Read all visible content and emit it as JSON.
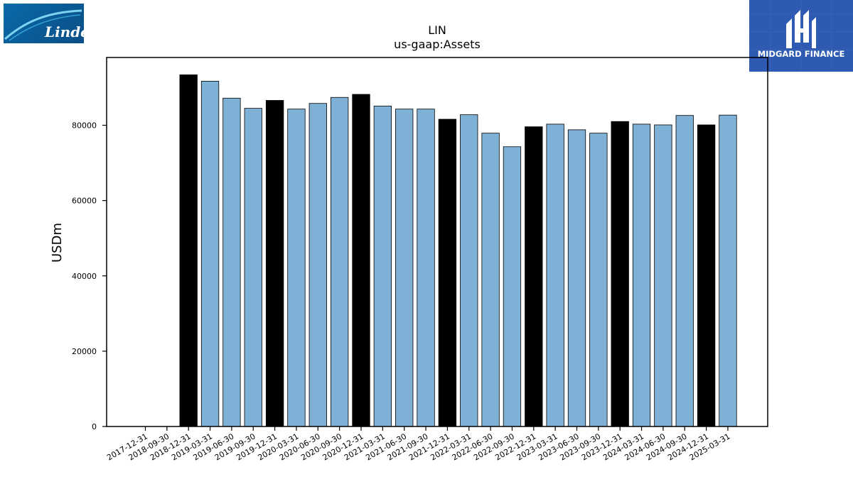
{
  "logos": {
    "left_text": "Linde",
    "right_text": "MIDGARD FINANCE"
  },
  "chart_data": {
    "type": "bar",
    "title": "LIN",
    "subtitle": "us-gaap:Assets",
    "xlabel": "",
    "ylabel": "USDm",
    "ylim": [
      0,
      98000
    ],
    "yticks": [
      0,
      20000,
      40000,
      60000,
      80000
    ],
    "grid": false,
    "categories": [
      "2017-12-31",
      "2018-09-30",
      "2018-12-31",
      "2019-03-31",
      "2019-06-30",
      "2019-09-30",
      "2019-12-31",
      "2020-03-31",
      "2020-06-30",
      "2020-09-30",
      "2020-12-31",
      "2021-03-31",
      "2021-06-30",
      "2021-09-30",
      "2021-12-31",
      "2022-03-31",
      "2022-06-30",
      "2022-09-30",
      "2022-12-31",
      "2023-03-31",
      "2023-06-30",
      "2023-09-30",
      "2023-12-31",
      "2024-03-31",
      "2024-06-30",
      "2024-09-30",
      "2024-12-31",
      "2025-03-31"
    ],
    "values": [
      null,
      null,
      93400,
      91700,
      87200,
      84500,
      86600,
      84300,
      85800,
      87400,
      88200,
      85100,
      84300,
      84300,
      81600,
      82800,
      77900,
      74300,
      79600,
      80300,
      78800,
      77900,
      81000,
      80300,
      80100,
      82600,
      80100,
      82700
    ],
    "colors": {
      "annual": "#000000",
      "quarterly": "#7fb0d5",
      "edge": "#000000"
    }
  }
}
